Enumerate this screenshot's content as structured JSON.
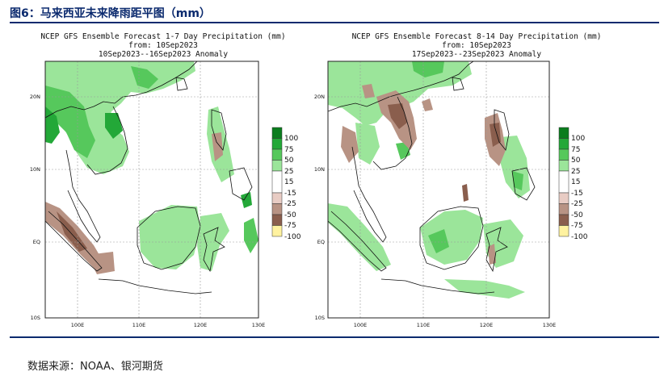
{
  "figure": {
    "title": "图6：马来西亚未来降雨距平图（mm）",
    "source": "数据来源：NOAA、银河期货"
  },
  "maps": [
    {
      "id": "week1",
      "title_line1": "NCEP GFS Ensemble Forecast 1-7 Day Precipitation (mm)",
      "title_line2": "from: 10Sep2023",
      "title_line3": "10Sep2023--16Sep2023 Anomaly"
    },
    {
      "id": "week2",
      "title_line1": "NCEP GFS Ensemble Forecast 8-14 Day Precipitation (mm)",
      "title_line2": "from: 10Sep2023",
      "title_line3": "17Sep2023--23Sep2023 Anomaly"
    }
  ],
  "axes": {
    "lat_labels": [
      "20N",
      "10N",
      "EQ",
      "10S"
    ],
    "lon_labels": [
      "100E",
      "110E",
      "120E",
      "130E"
    ]
  },
  "legend": {
    "items": [
      {
        "label": "100",
        "color": "#0b7d1e"
      },
      {
        "label": "75",
        "color": "#23a838"
      },
      {
        "label": "50",
        "color": "#56c85c"
      },
      {
        "label": "25",
        "color": "#9be59a"
      },
      {
        "label": "15",
        "color": "#ffffff"
      },
      {
        "label": "-15",
        "color": "#ffffff"
      },
      {
        "label": "-25",
        "color": "#e8ccc4"
      },
      {
        "label": "-50",
        "color": "#b89384"
      },
      {
        "label": "-75",
        "color": "#8a5e4d"
      },
      {
        "label": "-100",
        "color": "#fff2a0"
      }
    ]
  }
}
